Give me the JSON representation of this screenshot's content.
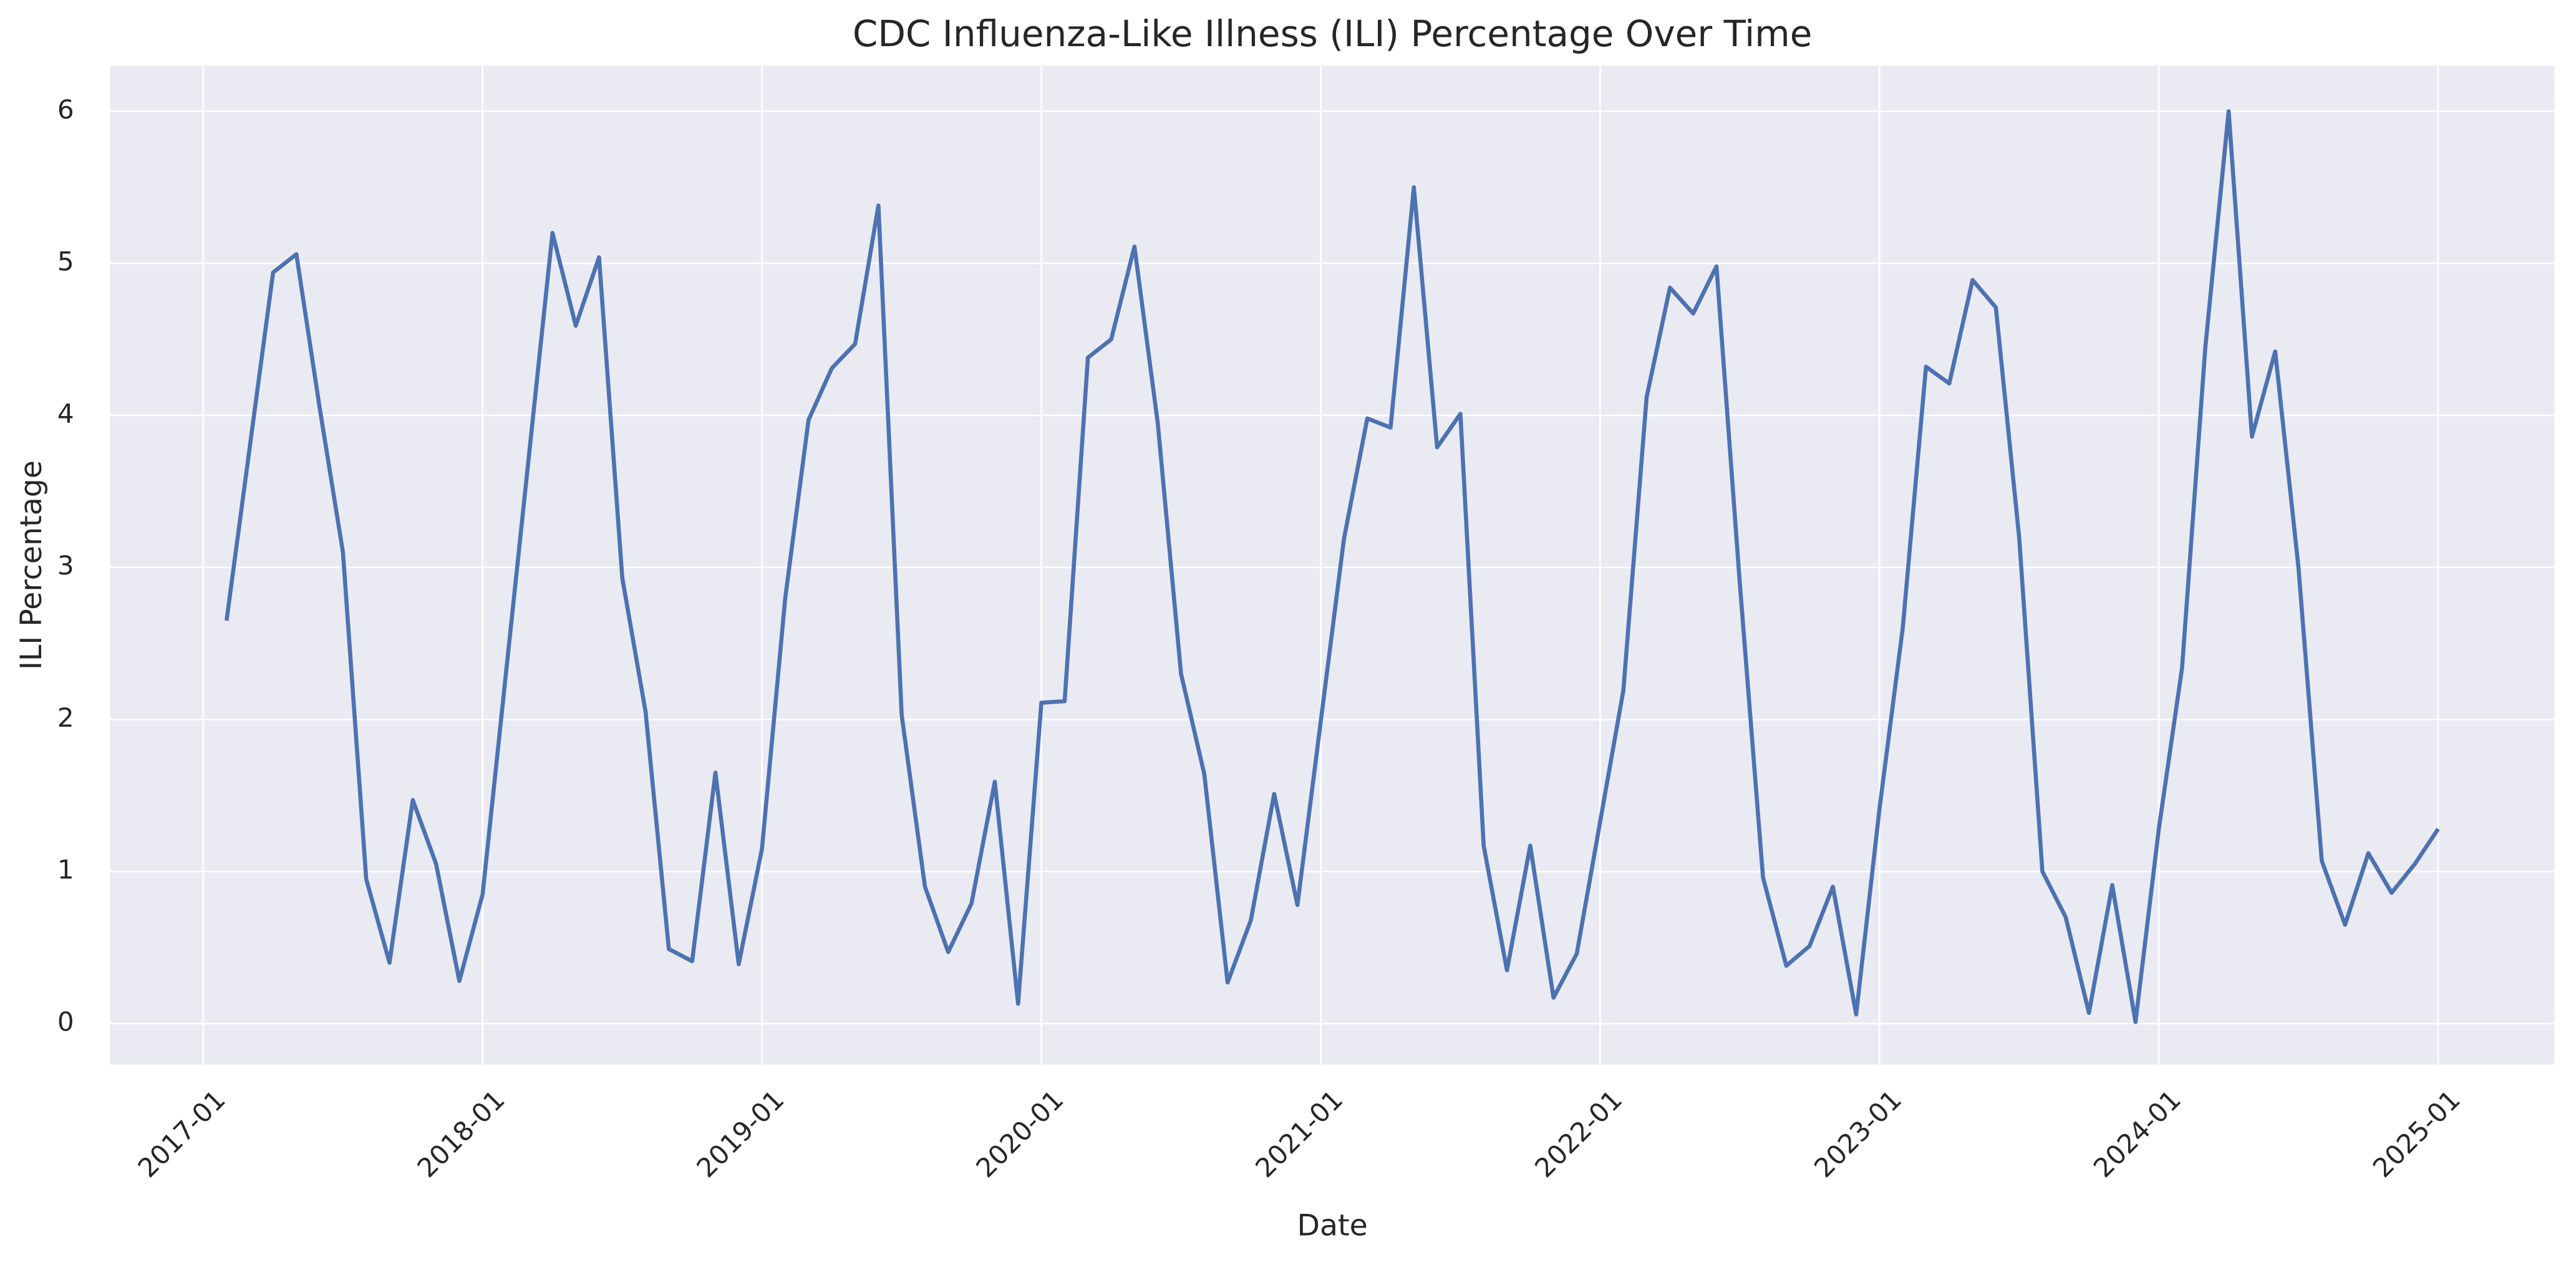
{
  "chart_data": {
    "type": "line",
    "title": "CDC Influenza-Like Illness (ILI) Percentage Over Time",
    "x_label": "Date",
    "y_label": "ILI Percentage",
    "color": "#4c72b0",
    "grid": true,
    "x": [
      "2017-02",
      "2017-04",
      "2017-05",
      "2017-06",
      "2017-07",
      "2017-08",
      "2017-09",
      "2017-10",
      "2017-11",
      "2017-12",
      "2018-01",
      "2018-02",
      "2018-04",
      "2018-05",
      "2018-06",
      "2018-07",
      "2018-08",
      "2018-09",
      "2018-10",
      "2018-11",
      "2018-12",
      "2019-01",
      "2019-02",
      "2019-03",
      "2019-04",
      "2019-05",
      "2019-06",
      "2019-07",
      "2019-08",
      "2019-09",
      "2019-10",
      "2019-11",
      "2019-12",
      "2020-01",
      "2020-02",
      "2020-03",
      "2020-04",
      "2020-05",
      "2020-06",
      "2020-07",
      "2020-08",
      "2020-09",
      "2020-10",
      "2020-11",
      "2020-12",
      "2021-02",
      "2021-03",
      "2021-04",
      "2021-05",
      "2021-06",
      "2021-07",
      "2021-08",
      "2021-09",
      "2021-10",
      "2021-11",
      "2021-12",
      "2022-02",
      "2022-03",
      "2022-04",
      "2022-05",
      "2022-06",
      "2022-07",
      "2022-08",
      "2022-09",
      "2022-10",
      "2022-11",
      "2022-12",
      "2023-01",
      "2023-02",
      "2023-03",
      "2023-04",
      "2023-05",
      "2023-06",
      "2023-07",
      "2023-08",
      "2023-09",
      "2023-10",
      "2023-11",
      "2023-12",
      "2024-01",
      "2024-02",
      "2024-03",
      "2024-04",
      "2024-05",
      "2024-06",
      "2024-07",
      "2024-08",
      "2024-09",
      "2024-10",
      "2024-11",
      "2024-12",
      "2025-01"
    ],
    "values": [
      2.65,
      4.94,
      5.06,
      4.05,
      3.1,
      0.95,
      0.4,
      1.47,
      1.05,
      0.28,
      0.85,
      2.3,
      5.2,
      4.59,
      5.04,
      2.93,
      2.05,
      0.49,
      0.41,
      1.65,
      0.39,
      1.15,
      2.8,
      3.97,
      4.31,
      4.47,
      5.38,
      2.03,
      0.9,
      0.47,
      0.79,
      1.59,
      0.13,
      2.11,
      2.12,
      4.38,
      4.5,
      5.11,
      3.95,
      2.3,
      1.64,
      0.27,
      0.68,
      1.51,
      0.78,
      3.19,
      3.98,
      3.92,
      5.5,
      3.79,
      4.01,
      1.17,
      0.35,
      1.17,
      0.17,
      0.46,
      2.19,
      4.12,
      4.84,
      4.67,
      4.98,
      2.9,
      0.96,
      0.38,
      0.51,
      0.9,
      0.06,
      1.41,
      2.6,
      4.32,
      4.21,
      4.89,
      4.71,
      3.2,
      1.0,
      0.7,
      0.07,
      0.91,
      0.01,
      1.28,
      2.34,
      4.45,
      6.0,
      3.86,
      4.42,
      3.0,
      1.07,
      0.65,
      1.12,
      0.86,
      1.05,
      1.28
    ],
    "xlim": [
      "2016-09",
      "2025-06"
    ],
    "xticks": [
      "2017-01",
      "2018-01",
      "2019-01",
      "2020-01",
      "2021-01",
      "2022-01",
      "2023-01",
      "2024-01",
      "2025-01"
    ],
    "ylim": [
      -0.27,
      6.3
    ],
    "yticks": [
      0,
      1,
      2,
      3,
      4,
      5,
      6
    ]
  }
}
